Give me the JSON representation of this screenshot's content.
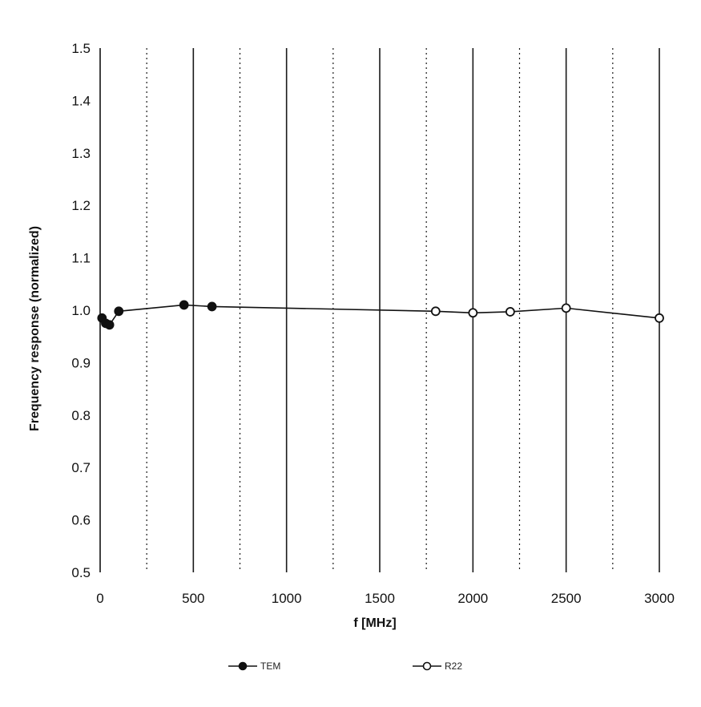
{
  "chart_data": {
    "type": "line",
    "xlabel": "f [MHz]",
    "ylabel": "Frequency response (normalized)",
    "xlim": [
      0,
      3000
    ],
    "ylim": [
      0.5,
      1.5
    ],
    "x_ticks": [
      0,
      500,
      1000,
      1500,
      2000,
      2500,
      3000
    ],
    "y_ticks": [
      0.5,
      0.6,
      0.7,
      0.8,
      0.9,
      1.0,
      1.1,
      1.2,
      1.3,
      1.4,
      1.5
    ],
    "grid": "vertical",
    "legend_position": "bottom",
    "series": [
      {
        "name": "TEM",
        "marker": "filled-circle",
        "x": [
          10,
          30,
          50,
          100,
          450,
          600
        ],
        "y": [
          0.985,
          0.975,
          0.972,
          0.998,
          1.01,
          1.007
        ]
      },
      {
        "name": "R22",
        "marker": "open-circle",
        "x": [
          1800,
          2000,
          2200,
          2500,
          3000
        ],
        "y": [
          0.998,
          0.995,
          0.997,
          1.004,
          0.985
        ]
      }
    ],
    "colors": {
      "line": "#111111",
      "grid": "#1a1a1a",
      "background": "#ffffff"
    }
  }
}
